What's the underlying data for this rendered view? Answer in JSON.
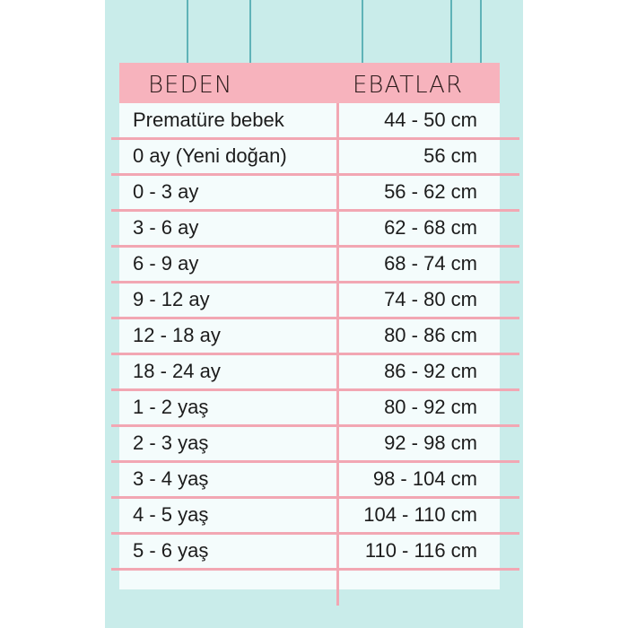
{
  "header": {
    "size_label": "BEDEN",
    "dimension_label": "EBATLAR"
  },
  "colors": {
    "background": "#c9ecea",
    "header": "#f7b3bd",
    "lines": "#f2a7b3"
  },
  "rows": [
    {
      "size": "Prematüre bebek",
      "dimension": "44 - 50 cm"
    },
    {
      "size": "0 ay (Yeni doğan)",
      "dimension": "56 cm"
    },
    {
      "size": "0 - 3 ay",
      "dimension": "56 - 62 cm"
    },
    {
      "size": "3 - 6 ay",
      "dimension": "62 - 68 cm"
    },
    {
      "size": "6 - 9 ay",
      "dimension": "68 - 74 cm"
    },
    {
      "size": "9 - 12 ay",
      "dimension": "74 - 80 cm"
    },
    {
      "size": "12 - 18 ay",
      "dimension": "80 - 86 cm"
    },
    {
      "size": "18 - 24 ay",
      "dimension": "86 - 92 cm"
    },
    {
      "size": "1 - 2 yaş",
      "dimension": "80 - 92 cm"
    },
    {
      "size": "2 - 3 yaş",
      "dimension": "92 - 98 cm"
    },
    {
      "size": "3 - 4 yaş",
      "dimension": "98 - 104 cm"
    },
    {
      "size": "4 - 5 yaş",
      "dimension": "104 - 110 cm"
    },
    {
      "size": "5 - 6 yaş",
      "dimension": "110 - 116 cm"
    }
  ]
}
